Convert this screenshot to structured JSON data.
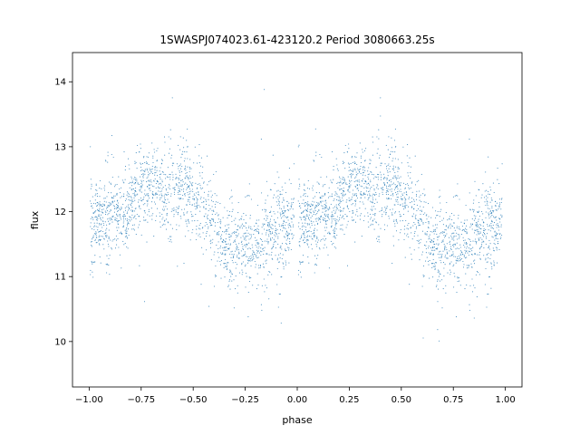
{
  "chart_data": {
    "type": "scatter",
    "title": "1SWASPJ074023.61-423120.2 Period 3080663.25s",
    "xlabel": "phase",
    "ylabel": "flux",
    "xlim": [
      -1.08,
      1.08
    ],
    "ylim": [
      9.3,
      14.45
    ],
    "xticks": [
      -1.0,
      -0.75,
      -0.5,
      -0.25,
      0.0,
      0.25,
      0.5,
      0.75,
      1.0
    ],
    "xtick_labels": [
      "−1.00",
      "−0.75",
      "−0.50",
      "−0.25",
      "0.00",
      "0.25",
      "0.50",
      "0.75",
      "1.00"
    ],
    "yticks": [
      10,
      11,
      12,
      13,
      14
    ],
    "ytick_labels": [
      "10",
      "11",
      "12",
      "13",
      "14"
    ],
    "grid": false,
    "marker_color": "#1f77b4",
    "series": [
      {
        "description": "folded light curve, two cycles (phase -1 to 1)",
        "mean_flux_profile": {
          "phase": [
            0.0,
            0.05,
            0.1,
            0.15,
            0.2,
            0.25,
            0.3,
            0.35,
            0.4,
            0.45,
            0.5,
            0.55,
            0.6,
            0.65,
            0.7,
            0.75,
            0.8,
            0.85,
            0.9,
            0.95,
            1.0
          ],
          "flux": [
            11.85,
            11.9,
            11.95,
            12.0,
            12.15,
            12.3,
            12.35,
            12.3,
            12.35,
            12.4,
            12.3,
            12.0,
            11.75,
            11.5,
            11.45,
            11.5,
            11.4,
            11.6,
            11.75,
            11.85,
            11.85
          ]
        }
      }
    ]
  }
}
